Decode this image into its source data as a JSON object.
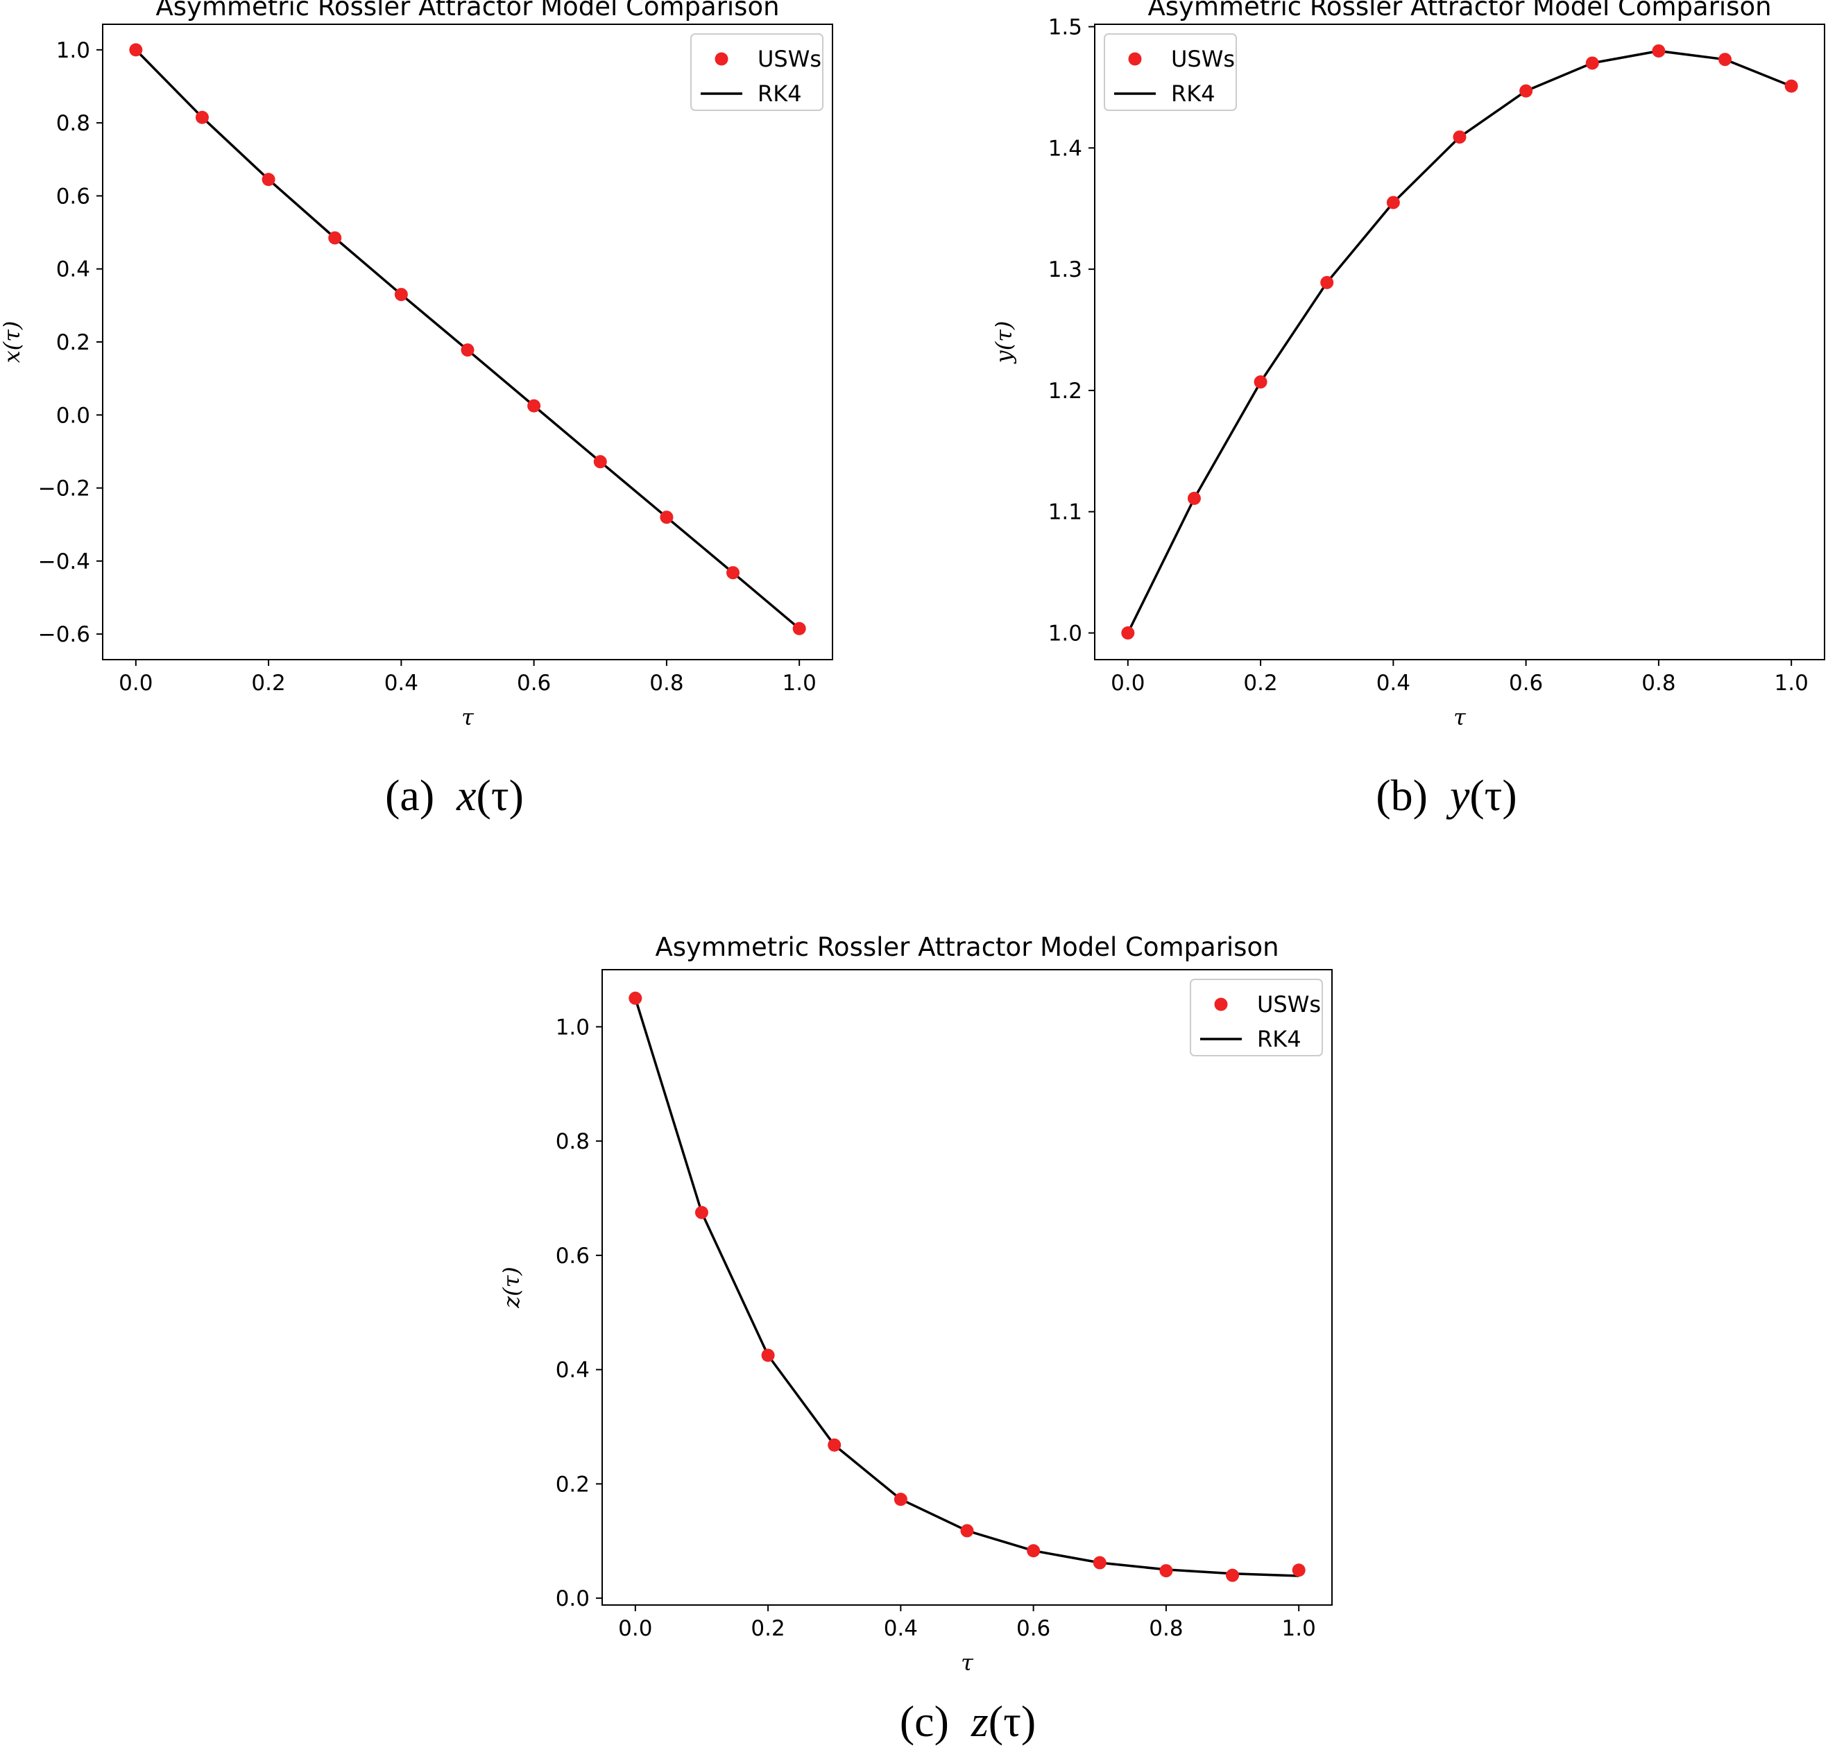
{
  "chart_data": [
    {
      "type": "line",
      "title": "Asymmetric Rossler Attractor Model Comparison",
      "xlabel": "τ",
      "ylabel": "x(τ)",
      "xlim": [
        -0.05,
        1.05
      ],
      "ylim": [
        -0.67,
        1.07
      ],
      "xticks": [
        0.0,
        0.2,
        0.4,
        0.6,
        0.8,
        1.0
      ],
      "xtick_labels": [
        "0.0",
        "0.2",
        "0.4",
        "0.6",
        "0.8",
        "1.0"
      ],
      "yticks": [
        -0.6,
        -0.4,
        -0.2,
        0.0,
        0.2,
        0.4,
        0.6,
        0.8,
        1.0
      ],
      "ytick_labels": [
        "−0.6",
        "−0.4",
        "−0.2",
        "0.0",
        "0.2",
        "0.4",
        "0.6",
        "0.8",
        "1.0"
      ],
      "x": [
        0.0,
        0.1,
        0.2,
        0.3,
        0.4,
        0.5,
        0.6,
        0.7,
        0.8,
        0.9,
        1.0
      ],
      "series": [
        {
          "name": "USWs",
          "style": "scatter",
          "color": "#ee2222",
          "values": [
            1.0,
            0.815,
            0.645,
            0.485,
            0.33,
            0.178,
            0.025,
            -0.128,
            -0.28,
            -0.432,
            -0.585
          ]
        },
        {
          "name": "RK4",
          "style": "line",
          "color": "#000000",
          "values": [
            1.0,
            0.815,
            0.645,
            0.485,
            0.33,
            0.178,
            0.025,
            -0.128,
            -0.28,
            -0.432,
            -0.585
          ]
        }
      ],
      "legend": "top-right",
      "grid": false,
      "caption_label": "(a)",
      "caption_var": "x",
      "caption_arg": "(τ)"
    },
    {
      "type": "line",
      "title": "Asymmetric Rossler Attractor Model Comparison",
      "xlabel": "τ",
      "ylabel": "y(τ)",
      "xlim": [
        -0.05,
        1.05
      ],
      "ylim": [
        0.978,
        1.502
      ],
      "xticks": [
        0.0,
        0.2,
        0.4,
        0.6,
        0.8,
        1.0
      ],
      "xtick_labels": [
        "0.0",
        "0.2",
        "0.4",
        "0.6",
        "0.8",
        "1.0"
      ],
      "yticks": [
        1.0,
        1.1,
        1.2,
        1.3,
        1.4,
        1.5
      ],
      "ytick_labels": [
        "1.0",
        "1.1",
        "1.2",
        "1.3",
        "1.4",
        "1.5"
      ],
      "x": [
        0.0,
        0.1,
        0.2,
        0.3,
        0.4,
        0.5,
        0.6,
        0.7,
        0.8,
        0.9,
        1.0
      ],
      "series": [
        {
          "name": "USWs",
          "style": "scatter",
          "color": "#ee2222",
          "values": [
            1.0,
            1.111,
            1.207,
            1.289,
            1.355,
            1.409,
            1.447,
            1.47,
            1.48,
            1.473,
            1.451
          ]
        },
        {
          "name": "RK4",
          "style": "line",
          "color": "#000000",
          "values": [
            1.0,
            1.111,
            1.207,
            1.289,
            1.355,
            1.409,
            1.447,
            1.47,
            1.48,
            1.473,
            1.451
          ]
        }
      ],
      "legend": "top-left",
      "grid": false,
      "caption_label": "(b)",
      "caption_var": "y",
      "caption_arg": "(τ)"
    },
    {
      "type": "line",
      "title": "Asymmetric Rossler Attractor Model Comparison",
      "xlabel": "τ",
      "ylabel": "z(τ)",
      "xlim": [
        -0.05,
        1.05
      ],
      "ylim": [
        -0.012,
        1.1
      ],
      "xticks": [
        0.0,
        0.2,
        0.4,
        0.6,
        0.8,
        1.0
      ],
      "xtick_labels": [
        "0.0",
        "0.2",
        "0.4",
        "0.6",
        "0.8",
        "1.0"
      ],
      "yticks": [
        0.0,
        0.2,
        0.4,
        0.6,
        0.8,
        1.0
      ],
      "ytick_labels": [
        "0.0",
        "0.2",
        "0.4",
        "0.6",
        "0.8",
        "1.0"
      ],
      "x": [
        0.0,
        0.1,
        0.2,
        0.3,
        0.4,
        0.5,
        0.6,
        0.7,
        0.8,
        0.9,
        1.0
      ],
      "series": [
        {
          "name": "USWs",
          "style": "scatter",
          "color": "#ee2222",
          "values": [
            1.05,
            0.675,
            0.425,
            0.268,
            0.173,
            0.118,
            0.083,
            0.062,
            0.048,
            0.04,
            0.049
          ]
        },
        {
          "name": "RK4",
          "style": "line",
          "color": "#000000",
          "values": [
            1.05,
            0.675,
            0.425,
            0.268,
            0.173,
            0.118,
            0.083,
            0.062,
            0.05,
            0.043,
            0.039
          ]
        }
      ],
      "legend": "top-right",
      "grid": false,
      "caption_label": "(c)",
      "caption_var": "z",
      "caption_arg": "(τ)"
    }
  ]
}
